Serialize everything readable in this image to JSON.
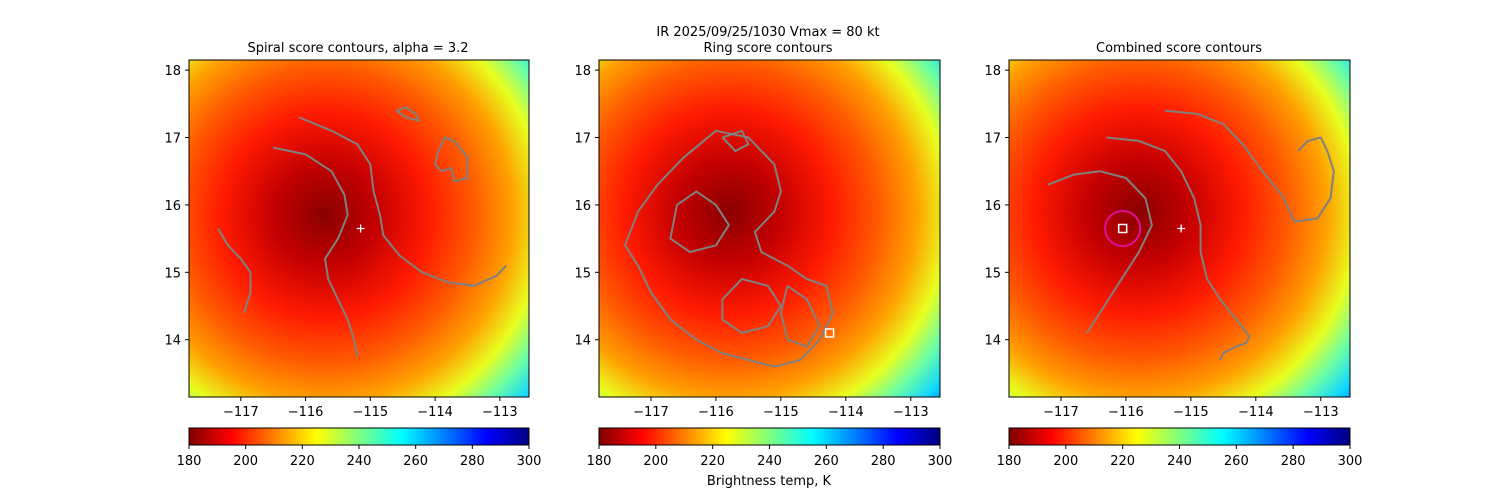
{
  "figure": {
    "suptitle_line1": "IR  2025/09/25/1030    Vmax = 80 kt",
    "colorbar_label": "Brightness temp, K"
  },
  "colormap": {
    "name": "jet",
    "stops": [
      "#7f0000",
      "#ff0000",
      "#ff7f00",
      "#ffff00",
      "#7fff7f",
      "#00ffff",
      "#007fff",
      "#0000ff",
      "#00007f"
    ]
  },
  "colors": {
    "contour": "#808080",
    "center_marker": "#ffffff",
    "combined_circle": "#e0109a"
  },
  "chart_data": [
    {
      "type": "heatmap",
      "title": "Spiral score contours, alpha =  3.2",
      "xlabel": "",
      "ylabel": "",
      "xlim": [
        -117.8,
        -112.55
      ],
      "ylim": [
        13.15,
        18.15
      ],
      "xticks": [
        -117,
        -116,
        -115,
        -114,
        -113
      ],
      "yticks": [
        14,
        15,
        16,
        17,
        18
      ],
      "colorbar": {
        "range": [
          180,
          300
        ],
        "ticks": [
          180,
          200,
          220,
          240,
          260,
          280,
          300
        ]
      },
      "storm_center_plus": {
        "x": -115.15,
        "y": 15.65
      },
      "contours": [
        [
          [
            -116.5,
            16.85
          ],
          [
            -116.0,
            16.75
          ],
          [
            -115.6,
            16.5
          ],
          [
            -115.4,
            16.15
          ],
          [
            -115.35,
            15.85
          ],
          [
            -115.5,
            15.5
          ],
          [
            -115.7,
            15.2
          ],
          [
            -115.65,
            14.9
          ],
          [
            -115.5,
            14.6
          ],
          [
            -115.35,
            14.3
          ],
          [
            -115.25,
            14.0
          ],
          [
            -115.2,
            13.75
          ]
        ],
        [
          [
            -116.1,
            17.3
          ],
          [
            -115.6,
            17.1
          ],
          [
            -115.2,
            16.9
          ],
          [
            -115.0,
            16.6
          ],
          [
            -114.95,
            16.2
          ],
          [
            -114.85,
            15.85
          ],
          [
            -114.8,
            15.55
          ],
          [
            -114.55,
            15.25
          ],
          [
            -114.2,
            15.0
          ],
          [
            -113.8,
            14.85
          ],
          [
            -113.4,
            14.8
          ],
          [
            -113.05,
            14.95
          ],
          [
            -112.9,
            15.1
          ]
        ],
        [
          [
            -114.0,
            16.6
          ],
          [
            -113.95,
            16.8
          ],
          [
            -113.85,
            17.0
          ],
          [
            -113.7,
            16.95
          ],
          [
            -113.5,
            16.7
          ],
          [
            -113.5,
            16.4
          ],
          [
            -113.7,
            16.35
          ],
          [
            -113.75,
            16.55
          ],
          [
            -113.9,
            16.5
          ],
          [
            -114.0,
            16.6
          ]
        ],
        [
          [
            -114.6,
            17.4
          ],
          [
            -114.45,
            17.45
          ],
          [
            -114.3,
            17.35
          ],
          [
            -114.25,
            17.25
          ],
          [
            -114.45,
            17.3
          ],
          [
            -114.6,
            17.4
          ]
        ],
        [
          [
            -117.35,
            15.65
          ],
          [
            -117.2,
            15.4
          ],
          [
            -117.0,
            15.2
          ],
          [
            -116.85,
            15.0
          ],
          [
            -116.85,
            14.7
          ],
          [
            -116.95,
            14.4
          ]
        ]
      ]
    },
    {
      "type": "heatmap",
      "title": "Ring score contours",
      "xlabel": "",
      "ylabel": "",
      "xlim": [
        -117.8,
        -112.55
      ],
      "ylim": [
        13.15,
        18.15
      ],
      "xticks": [
        -117,
        -116,
        -115,
        -114,
        -113
      ],
      "yticks": [
        14,
        15,
        16,
        17,
        18
      ],
      "colorbar": {
        "range": [
          180,
          300
        ],
        "ticks": [
          180,
          200,
          220,
          240,
          260,
          280,
          300
        ],
        "label": "Brightness temp, K"
      },
      "ring_center_square": {
        "x": -114.25,
        "y": 14.1
      },
      "contours": [
        [
          [
            -117.2,
            15.9
          ],
          [
            -116.9,
            16.3
          ],
          [
            -116.5,
            16.7
          ],
          [
            -116.0,
            17.1
          ],
          [
            -115.5,
            17.0
          ],
          [
            -115.1,
            16.6
          ],
          [
            -115.0,
            16.2
          ],
          [
            -115.1,
            15.9
          ],
          [
            -115.4,
            15.6
          ],
          [
            -115.3,
            15.3
          ],
          [
            -114.9,
            15.1
          ],
          [
            -114.6,
            14.9
          ],
          [
            -114.3,
            14.8
          ],
          [
            -114.2,
            14.4
          ],
          [
            -114.4,
            14.0
          ],
          [
            -114.7,
            13.7
          ],
          [
            -115.1,
            13.6
          ],
          [
            -115.5,
            13.7
          ],
          [
            -115.9,
            13.8
          ],
          [
            -116.3,
            14.0
          ],
          [
            -116.7,
            14.3
          ],
          [
            -117.0,
            14.7
          ],
          [
            -117.2,
            15.1
          ],
          [
            -117.4,
            15.4
          ],
          [
            -117.2,
            15.9
          ]
        ],
        [
          [
            -116.6,
            16.0
          ],
          [
            -116.3,
            16.2
          ],
          [
            -116.0,
            16.0
          ],
          [
            -115.8,
            15.7
          ],
          [
            -116.0,
            15.4
          ],
          [
            -116.4,
            15.3
          ],
          [
            -116.7,
            15.5
          ],
          [
            -116.6,
            16.0
          ]
        ],
        [
          [
            -115.9,
            17.0
          ],
          [
            -115.7,
            16.8
          ],
          [
            -115.5,
            16.9
          ],
          [
            -115.6,
            17.1
          ],
          [
            -115.9,
            17.0
          ]
        ],
        [
          [
            -115.9,
            14.6
          ],
          [
            -115.6,
            14.9
          ],
          [
            -115.2,
            14.8
          ],
          [
            -115.0,
            14.5
          ],
          [
            -115.2,
            14.2
          ],
          [
            -115.6,
            14.1
          ],
          [
            -115.9,
            14.3
          ],
          [
            -115.9,
            14.6
          ]
        ],
        [
          [
            -114.9,
            14.8
          ],
          [
            -114.6,
            14.6
          ],
          [
            -114.4,
            14.2
          ],
          [
            -114.6,
            13.9
          ],
          [
            -114.9,
            14.0
          ],
          [
            -115.0,
            14.4
          ],
          [
            -114.9,
            14.8
          ]
        ]
      ]
    },
    {
      "type": "heatmap",
      "title": "Combined score contours",
      "xlabel": "",
      "ylabel": "",
      "xlim": [
        -117.8,
        -112.55
      ],
      "ylim": [
        13.15,
        18.15
      ],
      "xticks": [
        -117,
        -116,
        -115,
        -114,
        -113
      ],
      "yticks": [
        14,
        15,
        16,
        17,
        18
      ],
      "colorbar": {
        "range": [
          180,
          300
        ],
        "ticks": [
          180,
          200,
          220,
          240,
          260,
          280,
          300
        ]
      },
      "storm_center_plus": {
        "x": -115.15,
        "y": 15.65
      },
      "combined_center_square": {
        "x": -116.05,
        "y": 15.65
      },
      "combined_circle_radius_deg": 0.27,
      "contours": [
        [
          [
            -117.2,
            16.3
          ],
          [
            -116.8,
            16.45
          ],
          [
            -116.4,
            16.5
          ],
          [
            -116.0,
            16.4
          ],
          [
            -115.7,
            16.1
          ],
          [
            -115.6,
            15.7
          ],
          [
            -115.8,
            15.3
          ],
          [
            -116.0,
            15.0
          ],
          [
            -116.2,
            14.7
          ],
          [
            -116.4,
            14.4
          ],
          [
            -116.6,
            14.1
          ]
        ],
        [
          [
            -116.3,
            17.0
          ],
          [
            -115.8,
            16.95
          ],
          [
            -115.4,
            16.8
          ],
          [
            -115.15,
            16.5
          ],
          [
            -114.95,
            16.1
          ],
          [
            -114.85,
            15.7
          ],
          [
            -114.85,
            15.3
          ],
          [
            -114.75,
            14.9
          ],
          [
            -114.55,
            14.6
          ],
          [
            -114.3,
            14.3
          ],
          [
            -114.1,
            14.05
          ],
          [
            -114.15,
            13.95
          ],
          [
            -114.3,
            13.9
          ],
          [
            -114.5,
            13.8
          ],
          [
            -114.55,
            13.7
          ]
        ],
        [
          [
            -115.4,
            17.4
          ],
          [
            -114.9,
            17.35
          ],
          [
            -114.5,
            17.2
          ],
          [
            -114.2,
            16.9
          ],
          [
            -113.9,
            16.5
          ],
          [
            -113.6,
            16.15
          ],
          [
            -113.4,
            15.75
          ],
          [
            -113.05,
            15.8
          ],
          [
            -112.85,
            16.1
          ],
          [
            -112.8,
            16.5
          ],
          [
            -112.9,
            16.8
          ],
          [
            -113.0,
            17.0
          ],
          [
            -113.2,
            16.95
          ],
          [
            -113.35,
            16.8
          ]
        ]
      ]
    }
  ]
}
